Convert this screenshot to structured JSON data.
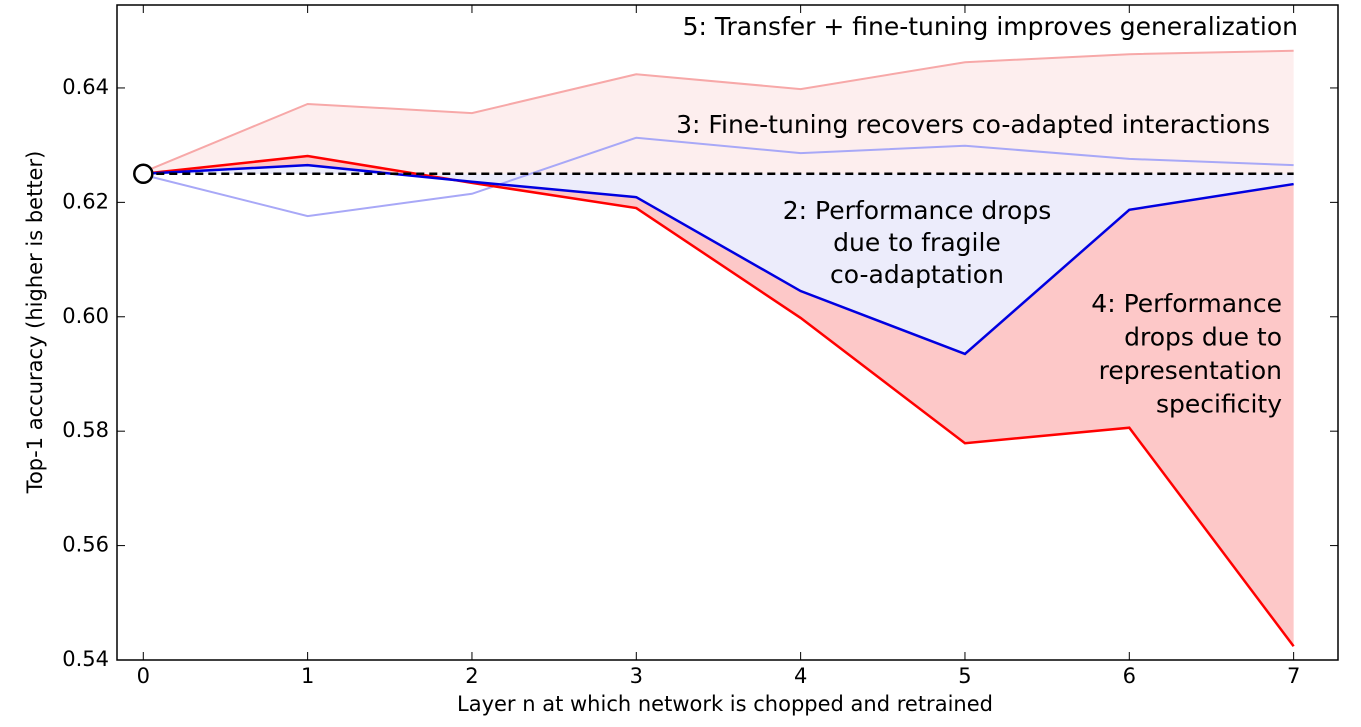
{
  "chart_data": {
    "type": "line",
    "x_label": "Layer n at which network is chopped and retrained",
    "y_label": "Top-1 accuracy (higher is better)",
    "x": [
      0,
      1,
      2,
      3,
      4,
      5,
      6,
      7
    ],
    "xlim": [
      -0.16,
      7.27
    ],
    "ylim": [
      0.54,
      0.6545
    ],
    "xticks": [
      0,
      1,
      2,
      3,
      4,
      5,
      6,
      7
    ],
    "yticks": [
      {
        "value": 0.54,
        "label": "0.54"
      },
      0.56,
      0.58,
      {
        "value": 0.6,
        "label": "0.60"
      },
      0.62,
      0.64
    ],
    "series": [
      {
        "color": "#f7a8a8",
        "values": [
          0.6253,
          0.6372,
          0.6356,
          0.6424,
          0.6398,
          0.6445,
          0.6459,
          0.6465
        ]
      },
      {
        "color": "#a8a8f7",
        "values": [
          0.6248,
          0.6176,
          0.6215,
          0.6313,
          0.6286,
          0.6299,
          0.6276,
          0.6265
        ]
      },
      {
        "color": "#ff0000",
        "values": [
          0.625,
          0.6281,
          0.6234,
          0.619,
          0.5998,
          0.5779,
          0.5806,
          0.5424
        ]
      },
      {
        "color": "#0000e0",
        "values": [
          0.625,
          0.6265,
          0.6236,
          0.6209,
          0.6045,
          0.5935,
          0.6187,
          0.6232
        ]
      },
      {
        "color": "#000000",
        "dashed": true,
        "values": [
          0.625,
          0.625,
          0.625,
          0.625,
          0.625,
          0.625,
          0.625,
          0.625
        ]
      }
    ],
    "annotations": [
      [
        "5: Transfer + fine-tuning improves generalization"
      ],
      [
        "3: Fine-tuning recovers co-adapted interactions"
      ],
      [
        "2: Performance drops",
        "due to fragile",
        "co-adaptation"
      ],
      [
        "4: Performance",
        "drops due to",
        "representation",
        "specificity"
      ]
    ]
  }
}
